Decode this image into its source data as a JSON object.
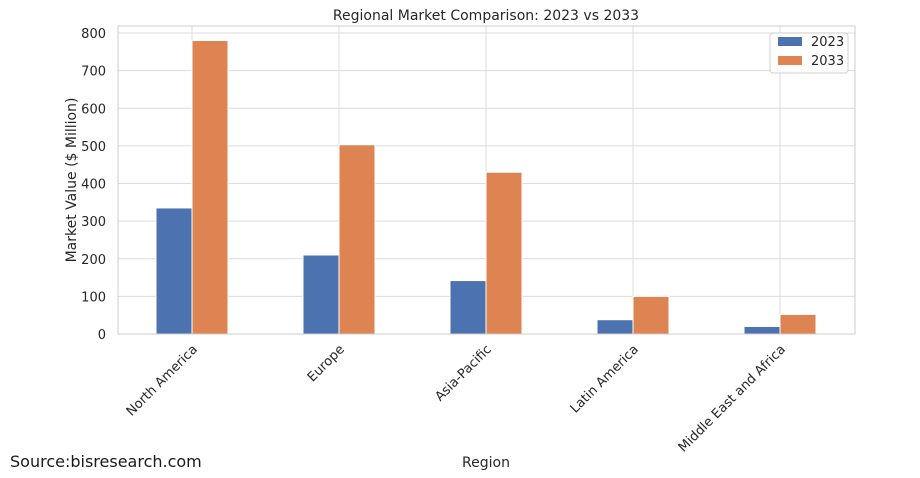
{
  "source": "Source:bisresearch.com",
  "chart_data": {
    "type": "bar",
    "title": "Regional Market Comparison: 2023 vs 2033",
    "xlabel": "Region",
    "ylabel": "Market Value ($ Million)",
    "categories": [
      "North America",
      "Europe",
      "Asia-Pacific",
      "Latin America",
      "Middle East and Africa"
    ],
    "series": [
      {
        "name": "2023",
        "values": [
          335,
          210,
          142,
          38,
          20
        ],
        "color": "#4c72b0"
      },
      {
        "name": "2033",
        "values": [
          780,
          503,
          430,
          100,
          52
        ],
        "color": "#dd8452"
      }
    ],
    "ylim": [
      0,
      800
    ],
    "yticks": [
      0,
      100,
      200,
      300,
      400,
      500,
      600,
      700,
      800
    ],
    "grid": true,
    "legend": "top-right"
  }
}
